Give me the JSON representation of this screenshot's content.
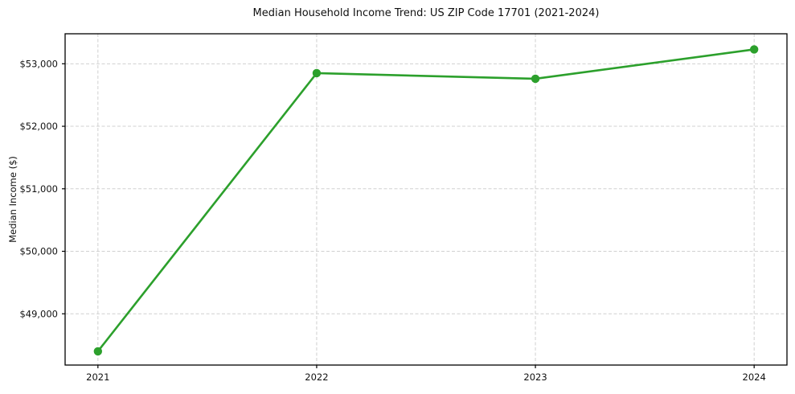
{
  "chart_data": {
    "type": "line",
    "title": "Median Household Income Trend: US ZIP Code 17701 (2021-2024)",
    "xlabel": "",
    "ylabel": "Median Income ($)",
    "x": [
      2021,
      2022,
      2023,
      2024
    ],
    "x_tick_labels": [
      "2021",
      "2022",
      "2023",
      "2024"
    ],
    "series": [
      {
        "name": "Median Household Income",
        "values": [
          48400,
          52850,
          52760,
          53230
        ]
      }
    ],
    "y_ticks": [
      49000,
      50000,
      51000,
      52000,
      53000
    ],
    "y_tick_labels": [
      "$49,000",
      "$50,000",
      "$51,000",
      "$52,000",
      "$53,000"
    ],
    "xlim": [
      2020.85,
      2024.15
    ],
    "ylim": [
      48180,
      53480
    ],
    "grid": true,
    "grid_style": "dashed",
    "legend_position": "none",
    "colors": {
      "line": "#2ca02c",
      "marker": "#2ca02c",
      "grid": "#d0d0d0",
      "spine": "#000000",
      "text": "#111111",
      "background": "#ffffff"
    }
  }
}
